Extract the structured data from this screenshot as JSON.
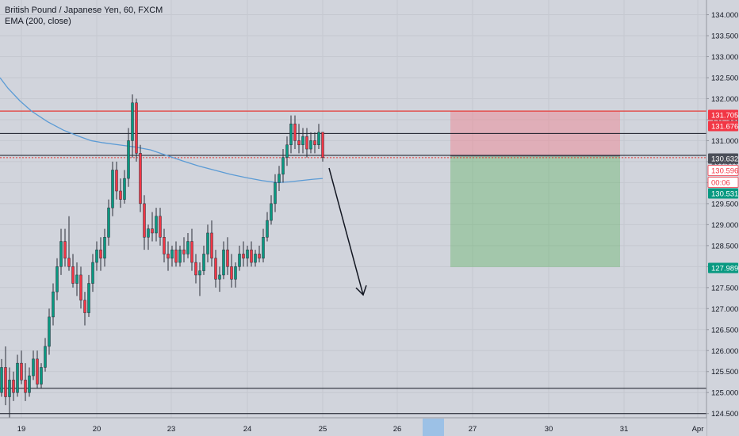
{
  "legend": {
    "title": "British Pound / Japanese Yen, 60, FXCM",
    "indicator": "EMA (200, close)"
  },
  "colors": {
    "background": "#d1d4dc",
    "axis_bg": "#d1d4dc",
    "grid": "#c5c8d0",
    "up": "#089981",
    "down": "#f23645",
    "ema": "#5b9bd5",
    "resistance_red": "#e53935",
    "level_black": "#131722",
    "stop_zone": "rgba(242,128,140,0.45)",
    "target_zone": "rgba(76,175,80,0.35)",
    "badge_red": "#f23645",
    "badge_green": "#089981",
    "badge_dark": "#4a4e58"
  },
  "chart_data": {
    "type": "candlestick",
    "title": "British Pound / Japanese Yen, 60, FXCM",
    "symbol": "GBPJPY",
    "timeframe": "60",
    "y_axis": {
      "ylim": [
        124.4,
        134.35
      ],
      "ticks": [
        "124.500",
        "125.000",
        "125.500",
        "126.000",
        "126.500",
        "127.000",
        "127.500",
        "128.000",
        "128.500",
        "129.000",
        "129.500",
        "130.000",
        "130.500",
        "131.000",
        "131.500",
        "132.000",
        "132.500",
        "133.000",
        "133.500",
        "134.000"
      ],
      "grid": true
    },
    "x_axis": {
      "ticks": [
        "19",
        "20",
        "23",
        "24",
        "25",
        "26",
        "27",
        "30",
        "31",
        "Apr"
      ],
      "highlight_label": "26"
    },
    "price_labels": [
      {
        "value": "131.705",
        "style": "red"
      },
      {
        "value": "131.676",
        "style": "red"
      },
      {
        "value": "130.632",
        "style": "dark"
      },
      {
        "value": "130.596",
        "style": "red-outline"
      },
      {
        "value": "00:06",
        "style": "red-outline"
      },
      {
        "value": "130.531",
        "style": "green"
      },
      {
        "value": "127.989",
        "style": "green"
      }
    ],
    "horizontal_levels": [
      {
        "value": 131.705,
        "style": "red"
      },
      {
        "value": 131.17,
        "style": "black"
      },
      {
        "value": 130.65,
        "style": "black"
      },
      {
        "value": 130.596,
        "style": "red-dotted"
      },
      {
        "value": 125.1,
        "style": "black"
      },
      {
        "value": 124.5,
        "style": "black"
      }
    ],
    "position": {
      "side": "short",
      "entry": 130.632,
      "stop": 131.705,
      "target": 127.989
    },
    "ema": [
      [
        0,
        132.5
      ],
      [
        10,
        132.25
      ],
      [
        25,
        131.95
      ],
      [
        40,
        131.7
      ],
      [
        60,
        131.45
      ],
      [
        80,
        131.25
      ],
      [
        100,
        131.1
      ],
      [
        115,
        131.0
      ],
      [
        130,
        130.95
      ],
      [
        150,
        130.9
      ],
      [
        170,
        130.85
      ],
      [
        190,
        130.78
      ],
      [
        210,
        130.65
      ],
      [
        230,
        130.52
      ],
      [
        250,
        130.4
      ],
      [
        270,
        130.3
      ],
      [
        290,
        130.2
      ],
      [
        310,
        130.12
      ],
      [
        330,
        130.05
      ],
      [
        350,
        130.0
      ],
      [
        365,
        130.02
      ],
      [
        380,
        130.05
      ],
      [
        395,
        130.08
      ],
      [
        407,
        130.1
      ]
    ],
    "candles": [
      {
        "o": 125.0,
        "h": 125.8,
        "l": 124.9,
        "c": 125.6
      },
      {
        "o": 125.6,
        "h": 126.1,
        "l": 124.7,
        "c": 124.9
      },
      {
        "o": 124.9,
        "h": 125.6,
        "l": 124.4,
        "c": 125.3
      },
      {
        "o": 125.3,
        "h": 125.5,
        "l": 124.8,
        "c": 125.0
      },
      {
        "o": 125.0,
        "h": 125.9,
        "l": 124.9,
        "c": 125.7
      },
      {
        "o": 125.7,
        "h": 126.0,
        "l": 125.2,
        "c": 125.3
      },
      {
        "o": 125.3,
        "h": 125.7,
        "l": 124.8,
        "c": 125.0
      },
      {
        "o": 125.0,
        "h": 125.6,
        "l": 124.9,
        "c": 125.4
      },
      {
        "o": 125.4,
        "h": 126.0,
        "l": 125.3,
        "c": 125.8
      },
      {
        "o": 125.8,
        "h": 126.0,
        "l": 125.1,
        "c": 125.2
      },
      {
        "o": 125.2,
        "h": 125.7,
        "l": 125.1,
        "c": 125.6
      },
      {
        "o": 125.6,
        "h": 126.3,
        "l": 125.5,
        "c": 126.1
      },
      {
        "o": 126.1,
        "h": 127.0,
        "l": 125.9,
        "c": 126.8
      },
      {
        "o": 126.8,
        "h": 127.6,
        "l": 126.6,
        "c": 127.4
      },
      {
        "o": 127.4,
        "h": 128.2,
        "l": 127.2,
        "c": 128.0
      },
      {
        "o": 128.0,
        "h": 128.9,
        "l": 127.8,
        "c": 128.6
      },
      {
        "o": 128.6,
        "h": 128.9,
        "l": 128.0,
        "c": 128.2
      },
      {
        "o": 128.2,
        "h": 129.2,
        "l": 127.9,
        "c": 128.0
      },
      {
        "o": 128.0,
        "h": 128.3,
        "l": 127.5,
        "c": 127.6
      },
      {
        "o": 127.6,
        "h": 128.1,
        "l": 127.3,
        "c": 127.8
      },
      {
        "o": 127.8,
        "h": 128.0,
        "l": 127.0,
        "c": 127.2
      },
      {
        "o": 127.2,
        "h": 127.4,
        "l": 126.6,
        "c": 126.9
      },
      {
        "o": 126.9,
        "h": 127.8,
        "l": 126.8,
        "c": 127.6
      },
      {
        "o": 127.6,
        "h": 128.3,
        "l": 127.4,
        "c": 128.1
      },
      {
        "o": 128.1,
        "h": 128.6,
        "l": 127.9,
        "c": 128.4
      },
      {
        "o": 128.4,
        "h": 128.7,
        "l": 127.9,
        "c": 128.2
      },
      {
        "o": 128.2,
        "h": 128.9,
        "l": 128.0,
        "c": 128.7
      },
      {
        "o": 128.7,
        "h": 129.6,
        "l": 128.5,
        "c": 129.4
      },
      {
        "o": 129.4,
        "h": 130.5,
        "l": 129.2,
        "c": 130.3
      },
      {
        "o": 130.3,
        "h": 130.5,
        "l": 129.6,
        "c": 129.8
      },
      {
        "o": 129.8,
        "h": 130.1,
        "l": 129.4,
        "c": 129.6
      },
      {
        "o": 129.6,
        "h": 130.3,
        "l": 129.5,
        "c": 130.1
      },
      {
        "o": 130.1,
        "h": 131.3,
        "l": 129.9,
        "c": 131.0
      },
      {
        "o": 131.0,
        "h": 132.1,
        "l": 130.6,
        "c": 131.9
      },
      {
        "o": 131.9,
        "h": 132.0,
        "l": 130.5,
        "c": 130.7
      },
      {
        "o": 130.7,
        "h": 130.9,
        "l": 129.3,
        "c": 129.5
      },
      {
        "o": 129.5,
        "h": 129.7,
        "l": 128.4,
        "c": 128.7
      },
      {
        "o": 128.7,
        "h": 129.0,
        "l": 128.4,
        "c": 128.9
      },
      {
        "o": 128.9,
        "h": 129.3,
        "l": 128.6,
        "c": 128.8
      },
      {
        "o": 128.8,
        "h": 129.4,
        "l": 128.6,
        "c": 129.2
      },
      {
        "o": 129.2,
        "h": 129.4,
        "l": 128.5,
        "c": 128.7
      },
      {
        "o": 128.7,
        "h": 128.9,
        "l": 128.1,
        "c": 128.3
      },
      {
        "o": 128.3,
        "h": 128.6,
        "l": 127.9,
        "c": 128.2
      },
      {
        "o": 128.2,
        "h": 128.5,
        "l": 128.0,
        "c": 128.4
      },
      {
        "o": 128.4,
        "h": 128.6,
        "l": 128.0,
        "c": 128.1
      },
      {
        "o": 128.1,
        "h": 128.5,
        "l": 128.0,
        "c": 128.4
      },
      {
        "o": 128.4,
        "h": 128.7,
        "l": 128.1,
        "c": 128.3
      },
      {
        "o": 128.3,
        "h": 128.8,
        "l": 128.2,
        "c": 128.6
      },
      {
        "o": 128.6,
        "h": 128.9,
        "l": 127.9,
        "c": 128.1
      },
      {
        "o": 128.1,
        "h": 128.3,
        "l": 127.6,
        "c": 127.8
      },
      {
        "o": 127.8,
        "h": 128.1,
        "l": 127.3,
        "c": 127.9
      },
      {
        "o": 127.9,
        "h": 128.5,
        "l": 127.8,
        "c": 128.3
      },
      {
        "o": 128.3,
        "h": 129.0,
        "l": 128.1,
        "c": 128.8
      },
      {
        "o": 128.8,
        "h": 129.1,
        "l": 128.0,
        "c": 128.2
      },
      {
        "o": 128.2,
        "h": 128.4,
        "l": 127.5,
        "c": 127.7
      },
      {
        "o": 127.7,
        "h": 128.0,
        "l": 127.4,
        "c": 127.8
      },
      {
        "o": 127.8,
        "h": 128.6,
        "l": 127.7,
        "c": 128.4
      },
      {
        "o": 128.4,
        "h": 128.7,
        "l": 127.8,
        "c": 128.0
      },
      {
        "o": 128.0,
        "h": 128.3,
        "l": 127.5,
        "c": 127.7
      },
      {
        "o": 127.7,
        "h": 128.1,
        "l": 127.5,
        "c": 128.0
      },
      {
        "o": 128.0,
        "h": 128.5,
        "l": 127.9,
        "c": 128.3
      },
      {
        "o": 128.3,
        "h": 128.6,
        "l": 128.0,
        "c": 128.2
      },
      {
        "o": 128.2,
        "h": 128.5,
        "l": 128.0,
        "c": 128.4
      },
      {
        "o": 128.4,
        "h": 128.6,
        "l": 128.0,
        "c": 128.1
      },
      {
        "o": 128.1,
        "h": 128.4,
        "l": 128.0,
        "c": 128.3
      },
      {
        "o": 128.3,
        "h": 128.5,
        "l": 128.1,
        "c": 128.2
      },
      {
        "o": 128.2,
        "h": 128.9,
        "l": 128.1,
        "c": 128.7
      },
      {
        "o": 128.7,
        "h": 129.3,
        "l": 128.6,
        "c": 129.1
      },
      {
        "o": 129.1,
        "h": 129.7,
        "l": 129.0,
        "c": 129.5
      },
      {
        "o": 129.5,
        "h": 130.2,
        "l": 129.3,
        "c": 130.0
      },
      {
        "o": 130.0,
        "h": 130.4,
        "l": 129.8,
        "c": 130.2
      },
      {
        "o": 130.2,
        "h": 130.8,
        "l": 130.0,
        "c": 130.6
      },
      {
        "o": 130.6,
        "h": 131.1,
        "l": 130.4,
        "c": 130.9
      },
      {
        "o": 130.9,
        "h": 131.6,
        "l": 130.7,
        "c": 131.4
      },
      {
        "o": 131.4,
        "h": 131.6,
        "l": 130.8,
        "c": 131.0
      },
      {
        "o": 131.0,
        "h": 131.4,
        "l": 130.7,
        "c": 130.9
      },
      {
        "o": 130.9,
        "h": 131.3,
        "l": 130.7,
        "c": 131.1
      },
      {
        "o": 131.1,
        "h": 131.3,
        "l": 130.6,
        "c": 130.8
      },
      {
        "o": 130.8,
        "h": 131.2,
        "l": 130.7,
        "c": 131.0
      },
      {
        "o": 131.0,
        "h": 131.2,
        "l": 130.7,
        "c": 130.9
      },
      {
        "o": 130.9,
        "h": 131.4,
        "l": 130.8,
        "c": 131.2
      },
      {
        "o": 131.2,
        "h": 131.2,
        "l": 130.5,
        "c": 130.6
      }
    ]
  }
}
